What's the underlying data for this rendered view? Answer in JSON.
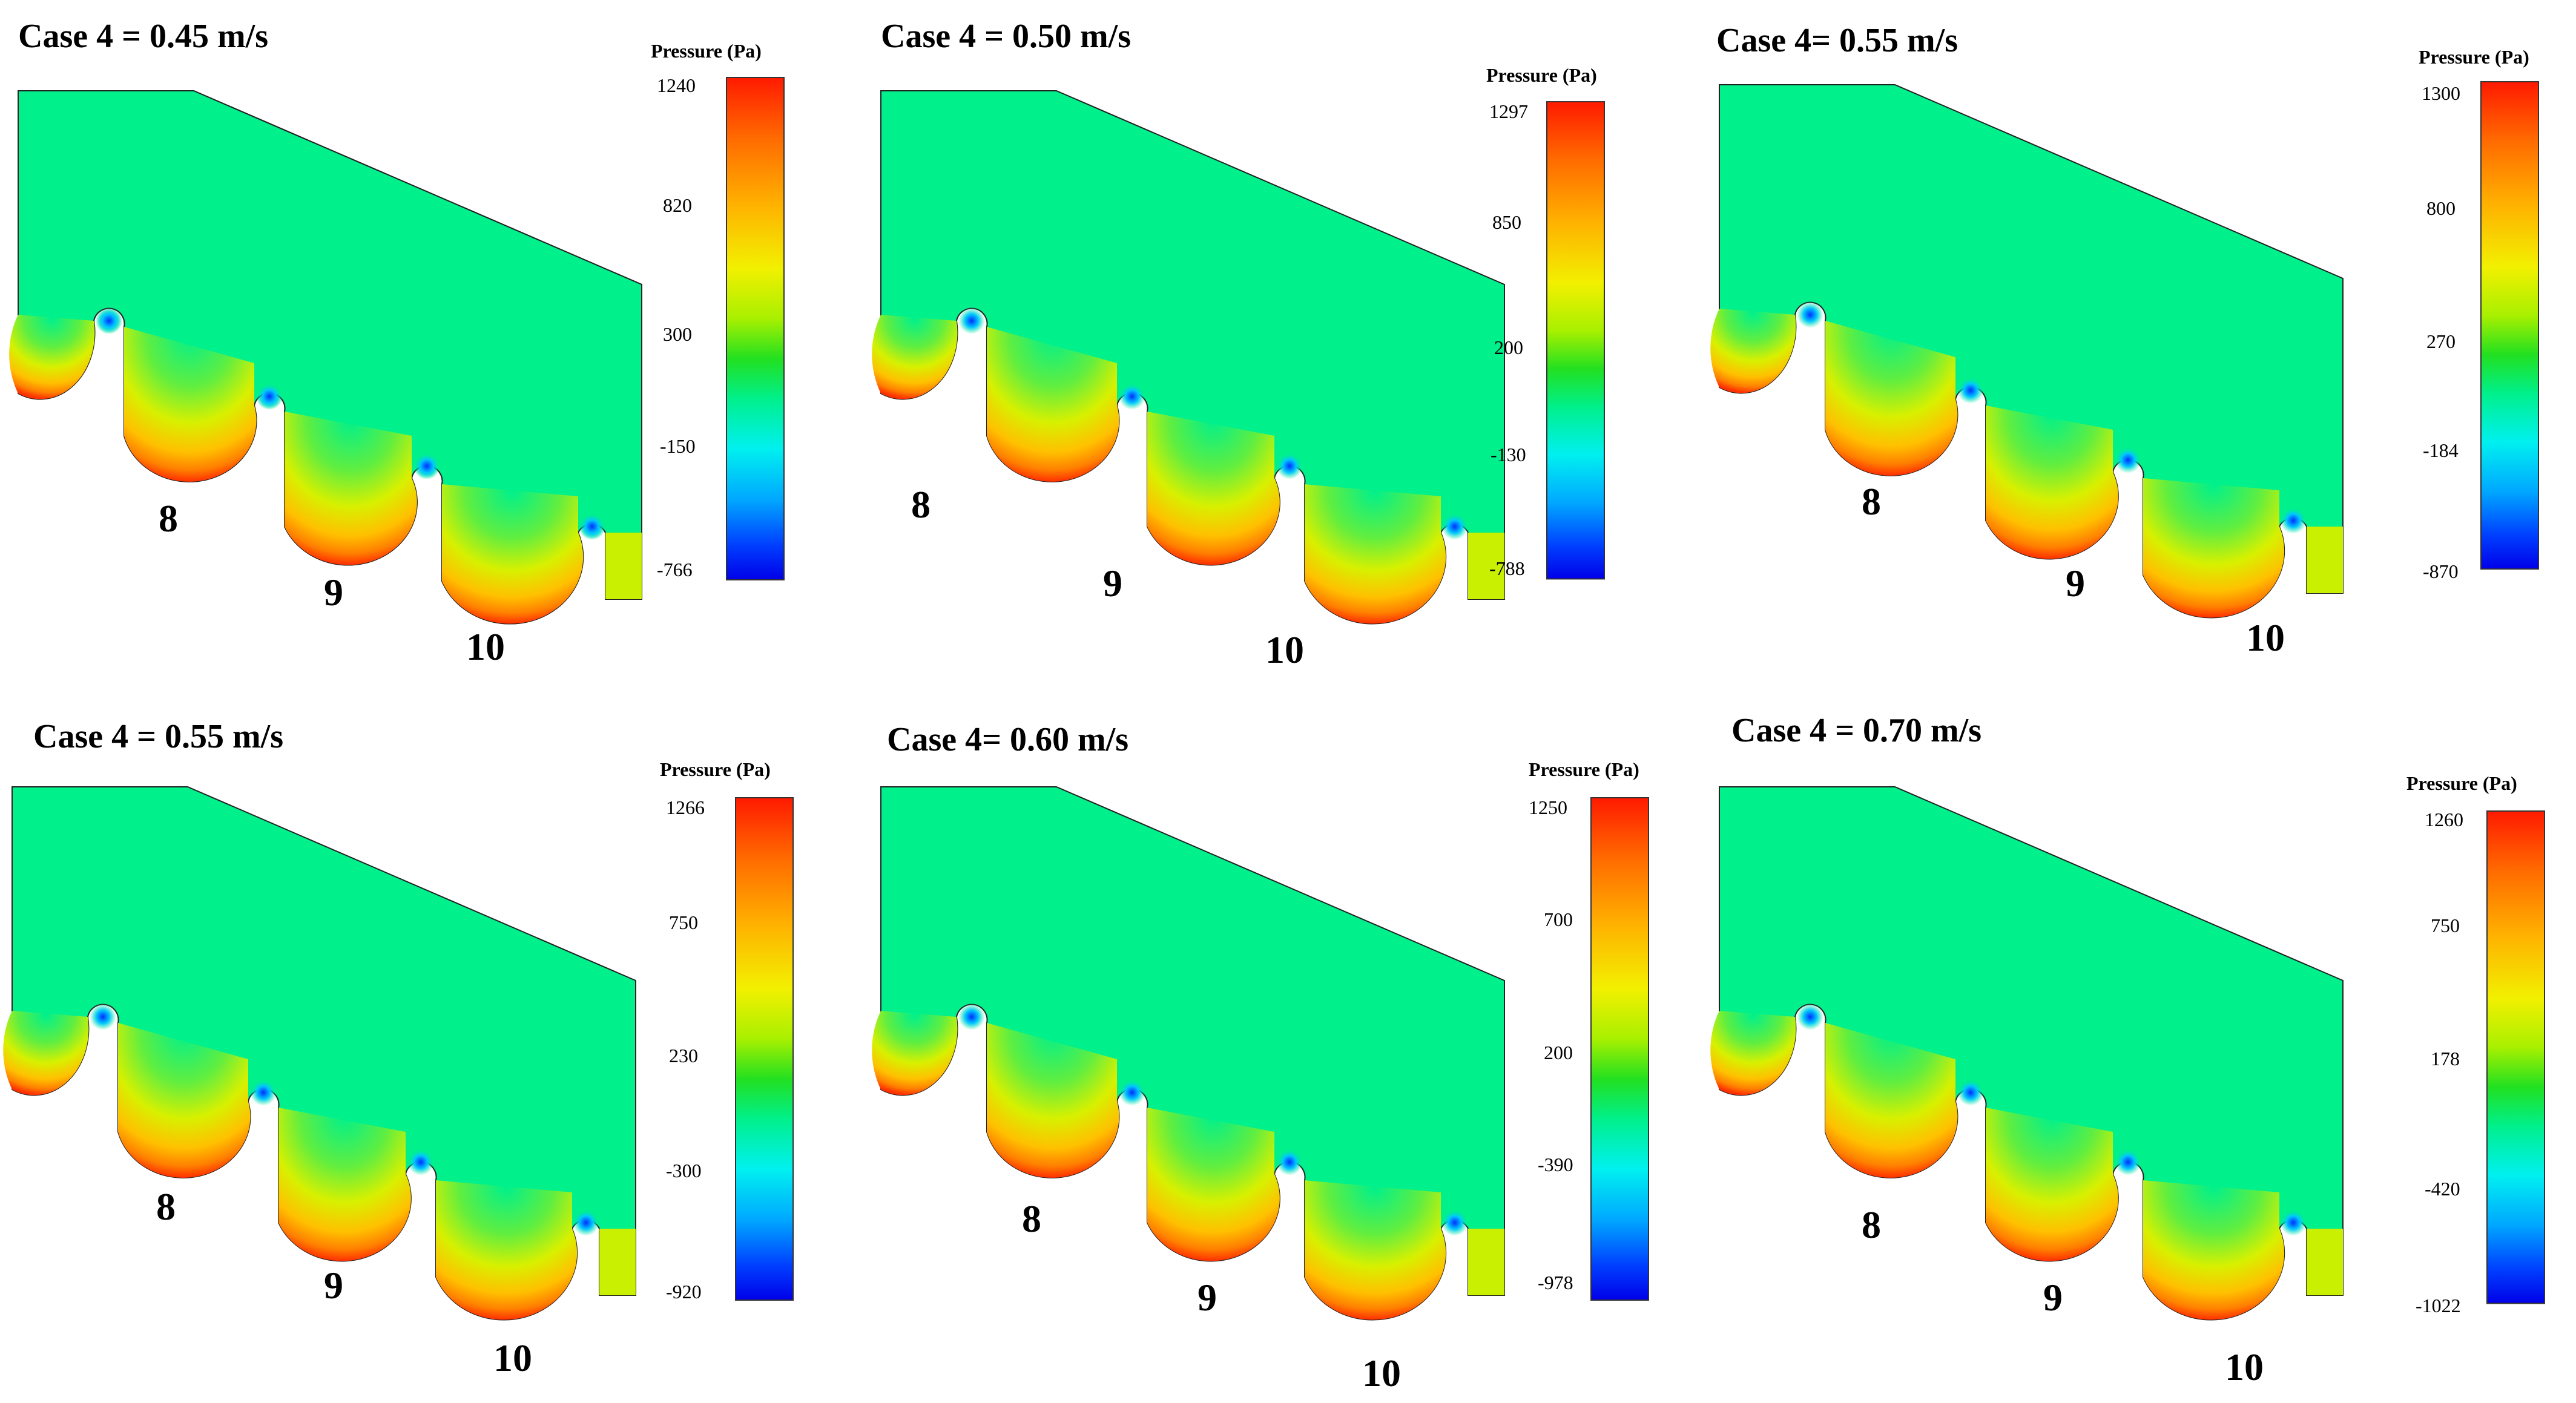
{
  "figure": {
    "panels": [
      {
        "title": "Case 4 = 0.45 m/s",
        "colorbar_title": "Pressure (Pa)",
        "ticks": [
          "1240",
          "820",
          "300",
          "-150",
          "-766"
        ],
        "cavities": [
          "8",
          "9",
          "10"
        ]
      },
      {
        "title": "Case 4 = 0.50 m/s",
        "colorbar_title": "Pressure (Pa)",
        "ticks": [
          "1297",
          "850",
          "200",
          "-130",
          "-788"
        ],
        "cavities": [
          "8",
          "9",
          "10"
        ]
      },
      {
        "title": "Case 4= 0.55 m/s",
        "colorbar_title": "Pressure (Pa)",
        "ticks": [
          "1300",
          "800",
          "270",
          "-184",
          "-870"
        ],
        "cavities": [
          "8",
          "9",
          "10"
        ]
      },
      {
        "title": "Case 4 = 0.55 m/s",
        "colorbar_title": "Pressure (Pa)",
        "ticks": [
          "1266",
          "750",
          "230",
          "-300",
          "-920"
        ],
        "cavities": [
          "8",
          "9",
          "10"
        ]
      },
      {
        "title": "Case 4= 0.60 m/s",
        "colorbar_title": "Pressure (Pa)",
        "ticks": [
          "1250",
          "700",
          "200",
          "-390",
          "-978"
        ],
        "cavities": [
          "8",
          "9",
          "10"
        ]
      },
      {
        "title": "Case 4 = 0.70 m/s",
        "colorbar_title": "Pressure (Pa)",
        "ticks": [
          "1260",
          "750",
          "178",
          "-420",
          "-1022"
        ],
        "cavities": [
          "8",
          "9",
          "10"
        ]
      }
    ],
    "colors": {
      "field": "#00f08c",
      "colormap": [
        "#ff1a00",
        "#ff6a00",
        "#ffb000",
        "#f2f000",
        "#a8f000",
        "#22e020",
        "#00f08c",
        "#00f0f0",
        "#00a8ff",
        "#0040ff",
        "#0000e8"
      ]
    }
  }
}
